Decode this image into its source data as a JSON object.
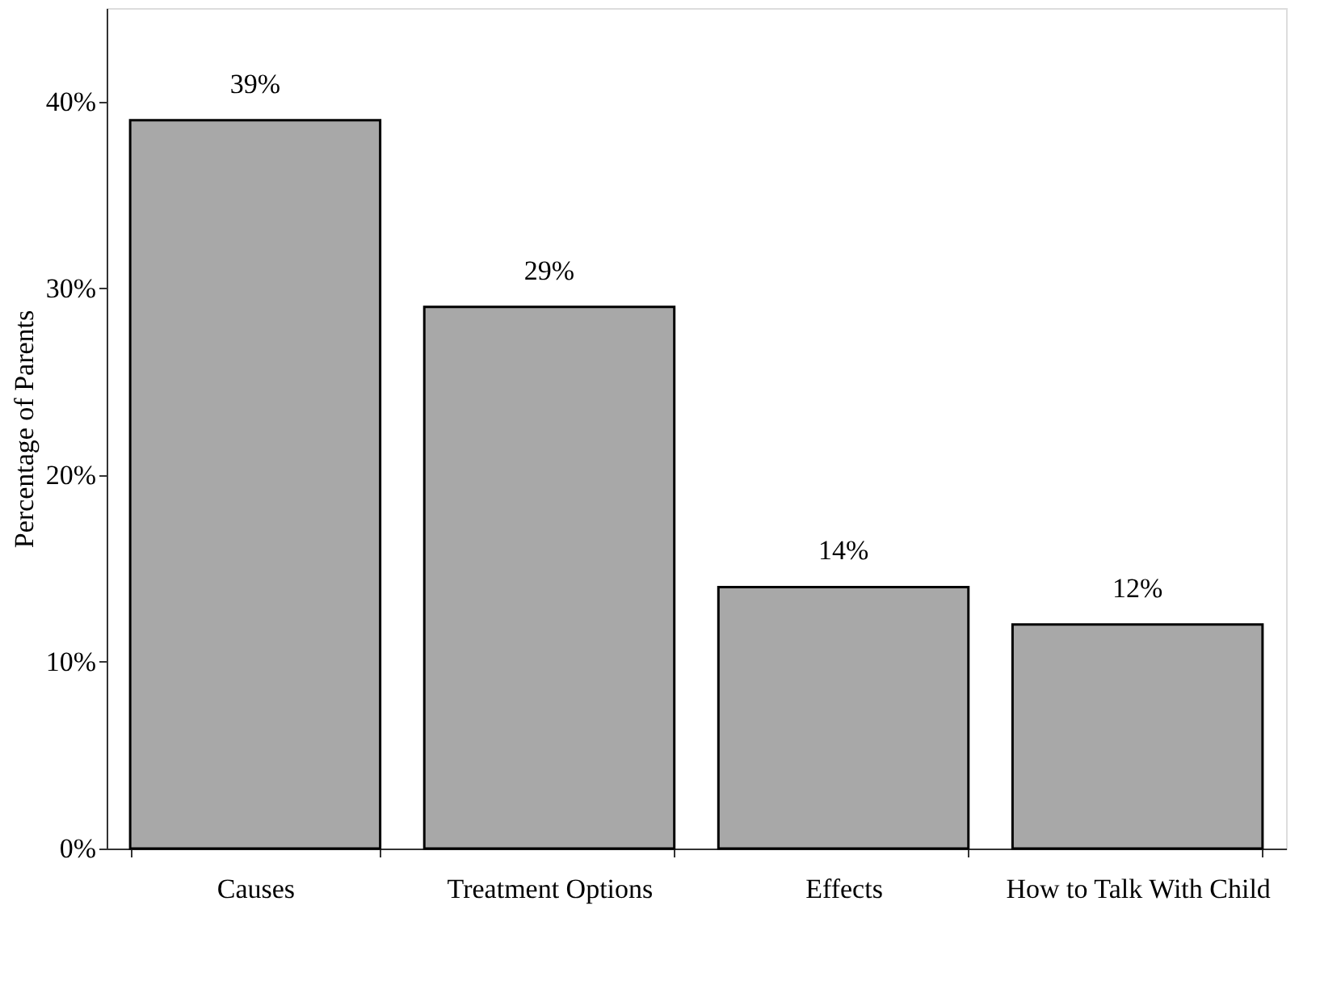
{
  "chart_data": {
    "type": "bar",
    "ylabel": "Percentage of Parents",
    "categories": [
      "Causes",
      "Treatment Options",
      "Effects",
      "How to Talk With Child"
    ],
    "values": [
      39,
      29,
      14,
      12
    ],
    "color": "#a8a8a8",
    "value_labels": [
      "39%",
      "29%",
      "14%",
      "12%"
    ],
    "ylim": [
      0,
      45
    ],
    "yticks": [
      {
        "value": 0,
        "label": "0%"
      },
      {
        "value": 10,
        "label": "10%"
      },
      {
        "value": 20,
        "label": "20%"
      },
      {
        "value": 30,
        "label": "30%"
      },
      {
        "value": 40,
        "label": "40%"
      }
    ],
    "grid": false
  }
}
